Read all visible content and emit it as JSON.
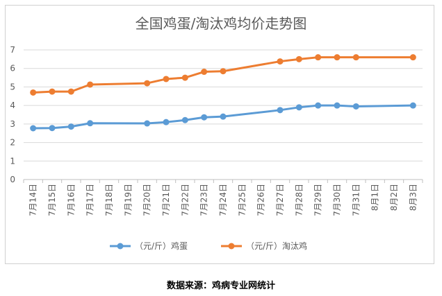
{
  "chart_data": {
    "type": "line",
    "title": "全国鸡蛋/淘汰鸡均价走势图",
    "categories": [
      "7月14日",
      "7月15日",
      "7月16日",
      "7月17日",
      "7月18日",
      "7月19日",
      "7月20日",
      "7月21日",
      "7月22日",
      "7月23日",
      "7月24日",
      "7月25日",
      "7月26日",
      "7月27日",
      "7月28日",
      "7月29日",
      "7月30日",
      "7月31日",
      "8月1日",
      "8月2日",
      "8月3日"
    ],
    "ylim": [
      0,
      7
    ],
    "yticks": [
      0,
      1,
      2,
      3,
      4,
      5,
      6,
      7
    ],
    "grid": true,
    "legend_position": "bottom",
    "series": [
      {
        "name": "（元/斤）鸡蛋",
        "color": "#5b9bd5",
        "values": [
          2.77,
          2.78,
          2.86,
          3.04,
          null,
          null,
          3.03,
          3.1,
          3.21,
          3.36,
          3.4,
          null,
          null,
          3.75,
          3.9,
          4.0,
          4.0,
          3.95,
          null,
          null,
          4.0
        ]
      },
      {
        "name": "（元/斤）淘汰鸡",
        "color": "#ed7d31",
        "values": [
          4.7,
          4.75,
          4.75,
          5.13,
          null,
          null,
          5.2,
          5.43,
          5.5,
          5.82,
          5.85,
          null,
          null,
          6.38,
          6.5,
          6.6,
          6.6,
          6.6,
          null,
          null,
          6.6
        ]
      }
    ]
  },
  "source_note": "数据来源：鸡病专业网统计"
}
